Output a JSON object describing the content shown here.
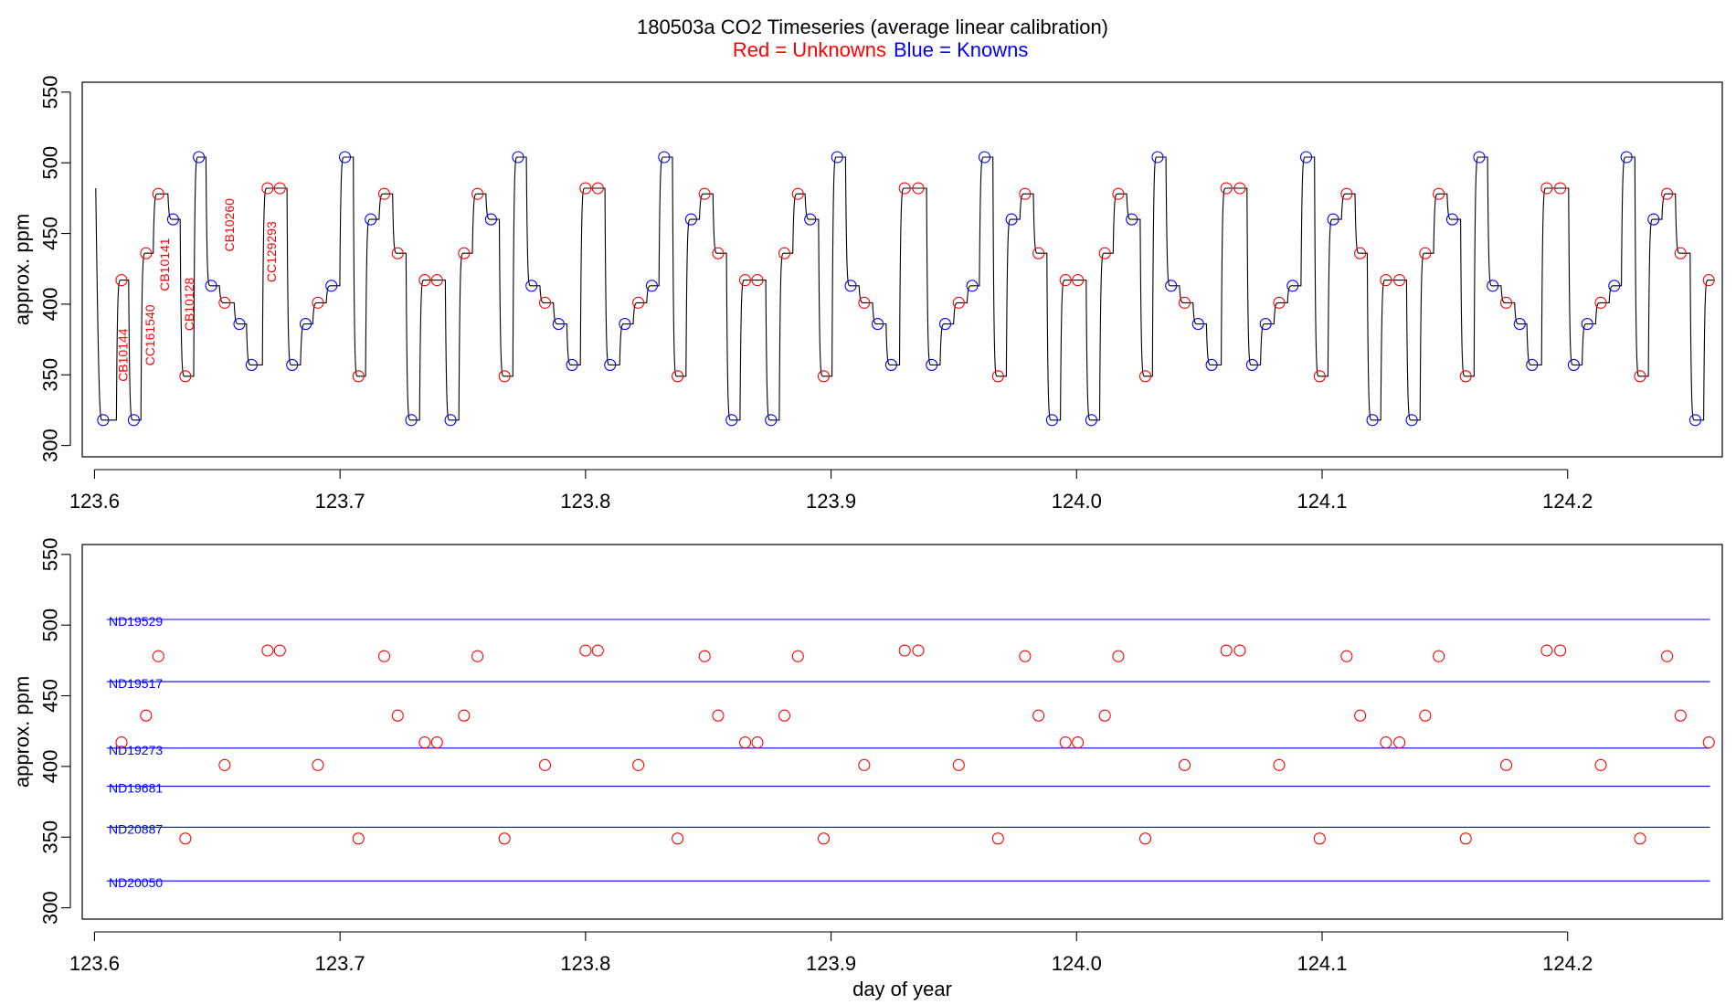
{
  "header": {
    "title": "180503a   CO2 Timeseries (average linear calibration)",
    "legend_red": "Red = Unknowns",
    "legend_blue": "Blue = Knowns"
  },
  "colors": {
    "unknown": "#ff0000",
    "known": "#0000ff",
    "trace": "#000000",
    "text": "#000000"
  },
  "chart_data": [
    {
      "type": "line",
      "panel": "top",
      "ylabel": "approx. ppm",
      "xlabel": "",
      "xlim": [
        123.595,
        124.263
      ],
      "ylim": [
        292,
        557
      ],
      "xticks": [
        "123.6",
        "123.7",
        "123.8",
        "123.9",
        "124.0",
        "124.1",
        "124.2"
      ],
      "yticks": [
        "300",
        "350",
        "400",
        "450",
        "500",
        "550"
      ],
      "trace_start": {
        "x": 123.6005,
        "y": 482
      },
      "segments": [
        {
          "x": 123.6035,
          "y": 318,
          "k": 1
        },
        {
          "x": 123.611,
          "y": 417,
          "k": 0
        },
        {
          "x": 123.616,
          "y": 318,
          "k": 1
        },
        {
          "x": 123.621,
          "y": 436,
          "k": 0
        },
        {
          "x": 123.626,
          "y": 478,
          "k": 0
        },
        {
          "x": 123.632,
          "y": 460,
          "k": 1
        },
        {
          "x": 123.637,
          "y": 349,
          "k": 0
        },
        {
          "x": 123.6425,
          "y": 504,
          "k": 1
        },
        {
          "x": 123.6475,
          "y": 413,
          "k": 1
        },
        {
          "x": 123.653,
          "y": 401,
          "k": 0
        },
        {
          "x": 123.659,
          "y": 386,
          "k": 1
        },
        {
          "x": 123.664,
          "y": 357,
          "k": 1
        },
        {
          "x": 123.6705,
          "y": 482,
          "k": 0
        },
        {
          "x": 123.6755,
          "y": 482,
          "k": 0
        },
        {
          "x": 123.6805,
          "y": 357,
          "k": 1
        },
        {
          "x": 123.686,
          "y": 386,
          "k": 1
        },
        {
          "x": 123.691,
          "y": 401,
          "k": 0
        },
        {
          "x": 123.6965,
          "y": 413,
          "k": 1
        },
        {
          "x": 123.702,
          "y": 504,
          "k": 1
        },
        {
          "x": 123.7075,
          "y": 349,
          "k": 0
        },
        {
          "x": 123.7125,
          "y": 460,
          "k": 1
        },
        {
          "x": 123.718,
          "y": 478,
          "k": 0
        },
        {
          "x": 123.7235,
          "y": 436,
          "k": 0
        },
        {
          "x": 123.729,
          "y": 318,
          "k": 1
        },
        {
          "x": 123.7345,
          "y": 417,
          "k": 0
        },
        {
          "x": 123.7395,
          "y": 417,
          "k": 0
        },
        {
          "x": 123.745,
          "y": 318,
          "k": 1
        },
        {
          "x": 123.7505,
          "y": 436,
          "k": 0
        },
        {
          "x": 123.756,
          "y": 478,
          "k": 0
        },
        {
          "x": 123.7615,
          "y": 460,
          "k": 1
        },
        {
          "x": 123.767,
          "y": 349,
          "k": 0
        },
        {
          "x": 123.7725,
          "y": 504,
          "k": 1
        },
        {
          "x": 123.778,
          "y": 413,
          "k": 1
        },
        {
          "x": 123.7835,
          "y": 401,
          "k": 0
        },
        {
          "x": 123.789,
          "y": 386,
          "k": 1
        },
        {
          "x": 123.7945,
          "y": 357,
          "k": 1
        },
        {
          "x": 123.8,
          "y": 482,
          "k": 0
        },
        {
          "x": 123.805,
          "y": 482,
          "k": 0
        },
        {
          "x": 123.81,
          "y": 357,
          "k": 1
        },
        {
          "x": 123.816,
          "y": 386,
          "k": 1
        },
        {
          "x": 123.8215,
          "y": 401,
          "k": 0
        },
        {
          "x": 123.827,
          "y": 413,
          "k": 1
        },
        {
          "x": 123.832,
          "y": 504,
          "k": 1
        },
        {
          "x": 123.8375,
          "y": 349,
          "k": 0
        },
        {
          "x": 123.843,
          "y": 460,
          "k": 1
        },
        {
          "x": 123.8485,
          "y": 478,
          "k": 0
        },
        {
          "x": 123.854,
          "y": 436,
          "k": 0
        },
        {
          "x": 123.8595,
          "y": 318,
          "k": 1
        },
        {
          "x": 123.865,
          "y": 417,
          "k": 0
        },
        {
          "x": 123.87,
          "y": 417,
          "k": 0
        },
        {
          "x": 123.8755,
          "y": 318,
          "k": 1
        },
        {
          "x": 123.881,
          "y": 436,
          "k": 0
        },
        {
          "x": 123.8865,
          "y": 478,
          "k": 0
        },
        {
          "x": 123.8915,
          "y": 460,
          "k": 1
        },
        {
          "x": 123.897,
          "y": 349,
          "k": 0
        },
        {
          "x": 123.9025,
          "y": 504,
          "k": 1
        },
        {
          "x": 123.908,
          "y": 413,
          "k": 1
        },
        {
          "x": 123.9135,
          "y": 401,
          "k": 0
        },
        {
          "x": 123.919,
          "y": 386,
          "k": 1
        },
        {
          "x": 123.9245,
          "y": 357,
          "k": 1
        },
        {
          "x": 123.93,
          "y": 482,
          "k": 0
        },
        {
          "x": 123.9355,
          "y": 482,
          "k": 0
        },
        {
          "x": 123.941,
          "y": 357,
          "k": 1
        },
        {
          "x": 123.9465,
          "y": 386,
          "k": 1
        },
        {
          "x": 123.952,
          "y": 401,
          "k": 0
        },
        {
          "x": 123.9575,
          "y": 413,
          "k": 1
        },
        {
          "x": 123.9625,
          "y": 504,
          "k": 1
        },
        {
          "x": 123.968,
          "y": 349,
          "k": 0
        },
        {
          "x": 123.9735,
          "y": 460,
          "k": 1
        },
        {
          "x": 123.979,
          "y": 478,
          "k": 0
        },
        {
          "x": 123.9845,
          "y": 436,
          "k": 0
        },
        {
          "x": 123.99,
          "y": 318,
          "k": 1
        },
        {
          "x": 123.9955,
          "y": 417,
          "k": 0
        },
        {
          "x": 124.0005,
          "y": 417,
          "k": 0
        },
        {
          "x": 124.006,
          "y": 318,
          "k": 1
        },
        {
          "x": 124.0115,
          "y": 436,
          "k": 0
        },
        {
          "x": 124.017,
          "y": 478,
          "k": 0
        },
        {
          "x": 124.0225,
          "y": 460,
          "k": 1
        },
        {
          "x": 124.028,
          "y": 349,
          "k": 0
        },
        {
          "x": 124.033,
          "y": 504,
          "k": 1
        },
        {
          "x": 124.0385,
          "y": 413,
          "k": 1
        },
        {
          "x": 124.044,
          "y": 401,
          "k": 0
        },
        {
          "x": 124.0495,
          "y": 386,
          "k": 1
        },
        {
          "x": 124.055,
          "y": 357,
          "k": 1
        },
        {
          "x": 124.061,
          "y": 482,
          "k": 0
        },
        {
          "x": 124.0665,
          "y": 482,
          "k": 0
        },
        {
          "x": 124.0715,
          "y": 357,
          "k": 1
        },
        {
          "x": 124.077,
          "y": 386,
          "k": 1
        },
        {
          "x": 124.0825,
          "y": 401,
          "k": 0
        },
        {
          "x": 124.088,
          "y": 413,
          "k": 1
        },
        {
          "x": 124.0935,
          "y": 504,
          "k": 1
        },
        {
          "x": 124.099,
          "y": 349,
          "k": 0
        },
        {
          "x": 124.1045,
          "y": 460,
          "k": 1
        },
        {
          "x": 124.11,
          "y": 478,
          "k": 0
        },
        {
          "x": 124.1155,
          "y": 436,
          "k": 0
        },
        {
          "x": 124.1205,
          "y": 318,
          "k": 1
        },
        {
          "x": 124.126,
          "y": 417,
          "k": 0
        },
        {
          "x": 124.1315,
          "y": 417,
          "k": 0
        },
        {
          "x": 124.1365,
          "y": 318,
          "k": 1
        },
        {
          "x": 124.142,
          "y": 436,
          "k": 0
        },
        {
          "x": 124.1475,
          "y": 478,
          "k": 0
        },
        {
          "x": 124.153,
          "y": 460,
          "k": 1
        },
        {
          "x": 124.1585,
          "y": 349,
          "k": 0
        },
        {
          "x": 124.164,
          "y": 504,
          "k": 1
        },
        {
          "x": 124.1695,
          "y": 413,
          "k": 1
        },
        {
          "x": 124.175,
          "y": 401,
          "k": 0
        },
        {
          "x": 124.1805,
          "y": 386,
          "k": 1
        },
        {
          "x": 124.1855,
          "y": 357,
          "k": 1
        },
        {
          "x": 124.1915,
          "y": 482,
          "k": 0
        },
        {
          "x": 124.197,
          "y": 482,
          "k": 0
        },
        {
          "x": 124.2025,
          "y": 357,
          "k": 1
        },
        {
          "x": 124.208,
          "y": 386,
          "k": 1
        },
        {
          "x": 124.2135,
          "y": 401,
          "k": 0
        },
        {
          "x": 124.219,
          "y": 413,
          "k": 1
        },
        {
          "x": 124.224,
          "y": 504,
          "k": 1
        },
        {
          "x": 124.2295,
          "y": 349,
          "k": 0
        },
        {
          "x": 124.235,
          "y": 460,
          "k": 1
        },
        {
          "x": 124.2405,
          "y": 478,
          "k": 0
        },
        {
          "x": 124.246,
          "y": 436,
          "k": 0
        },
        {
          "x": 124.252,
          "y": 318,
          "k": 1
        },
        {
          "x": 124.2575,
          "y": 417,
          "k": 0
        }
      ],
      "annotations": [
        {
          "text": "CB10144",
          "x": 123.6115,
          "y": 364
        },
        {
          "text": "CC161540",
          "x": 123.6225,
          "y": 378
        },
        {
          "text": "CB10141",
          "x": 123.6285,
          "y": 428
        },
        {
          "text": "CB10128",
          "x": 123.6385,
          "y": 400
        },
        {
          "text": "CB10260",
          "x": 123.655,
          "y": 456
        },
        {
          "text": "CC129293",
          "x": 123.672,
          "y": 437
        }
      ]
    },
    {
      "type": "scatter",
      "panel": "bottom",
      "ylabel": "approx. ppm",
      "xlabel": "day of year",
      "xlim": [
        123.595,
        124.263
      ],
      "ylim": [
        292,
        557
      ],
      "xticks": [
        "123.6",
        "123.7",
        "123.8",
        "123.9",
        "124.0",
        "124.1",
        "124.2"
      ],
      "yticks": [
        "300",
        "350",
        "400",
        "450",
        "500",
        "550"
      ],
      "standards": [
        {
          "name": "ND19529",
          "y": 504
        },
        {
          "name": "ND19517",
          "y": 460
        },
        {
          "name": "ND19273",
          "y": 413
        },
        {
          "name": "ND19681",
          "y": 386
        },
        {
          "name": "ND20887",
          "y": 357
        },
        {
          "name": "ND20050",
          "y": 319
        }
      ],
      "standards_xrange": [
        123.605,
        124.258
      ]
    }
  ]
}
